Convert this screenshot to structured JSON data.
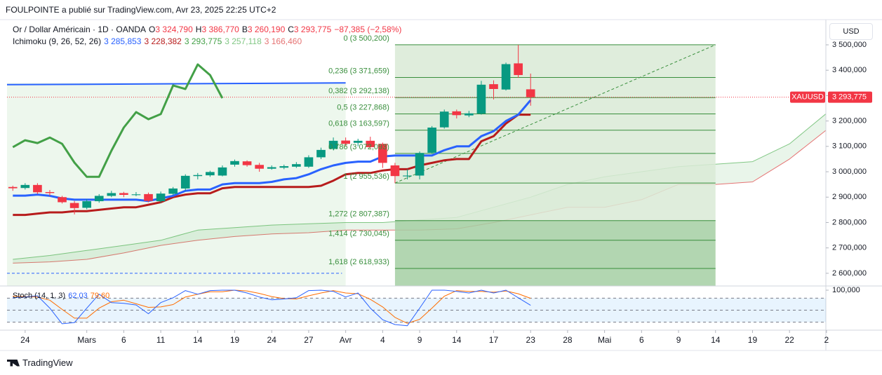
{
  "header": {
    "publisher": "FOULPOINTE a publié sur TradingView.com, Avr 23, 2025 22:25 UTC+2",
    "brand": "TradingView"
  },
  "chart_data": {
    "type": "candlestick",
    "legend": {
      "symbol": "Or / Dollar Américain · 1D · OANDA",
      "ohlc": [
        {
          "key": "O",
          "text": "3 324,790"
        },
        {
          "key": "H",
          "text": "3 386,770"
        },
        {
          "key": "B",
          "text": "3 260,190"
        },
        {
          "key": "C",
          "text": "3 293,775"
        }
      ],
      "change": "−87,385 (−2,58%)"
    },
    "currency": "USD",
    "x": [
      -1,
      0,
      1,
      2,
      3,
      4,
      5,
      6,
      7,
      8,
      9,
      10,
      11,
      12,
      13,
      14,
      15,
      16,
      17,
      18,
      19,
      20,
      21,
      22,
      23,
      24,
      25,
      26,
      27,
      28,
      29,
      30,
      31,
      32,
      33,
      34,
      35,
      36,
      37,
      38,
      39,
      40,
      41
    ],
    "open": [
      2940,
      2936,
      2948,
      2920,
      2900,
      2877,
      2858,
      2884,
      2905,
      2916,
      2908,
      2912,
      2884,
      2913,
      2934,
      2983,
      2986,
      2985,
      3028,
      3041,
      3027,
      3012,
      3016,
      3020,
      3020,
      3057,
      3090,
      3123,
      3114,
      3122,
      3110,
      3025,
      2982,
      2985,
      3075,
      3175,
      3238,
      3222,
      3229,
      3345,
      3324,
      3427,
      3324.79
    ],
    "high": [
      2945,
      2955,
      2955,
      2928,
      2905,
      2885,
      2892,
      2912,
      2925,
      2921,
      2920,
      2918,
      2922,
      2940,
      2990,
      2995,
      3004,
      3025,
      3048,
      3045,
      3035,
      3025,
      3028,
      3038,
      3065,
      3095,
      3135,
      3135,
      3130,
      3138,
      3115,
      3035,
      3010,
      3080,
      3180,
      3245,
      3245,
      3240,
      3358,
      3360,
      3430,
      3500,
      3386.77
    ],
    "low": [
      2925,
      2930,
      2912,
      2905,
      2875,
      2832,
      2852,
      2878,
      2900,
      2900,
      2904,
      2880,
      2878,
      2908,
      2925,
      2970,
      2980,
      2982,
      3020,
      3020,
      3000,
      3008,
      3010,
      3015,
      3015,
      3050,
      3085,
      3100,
      3100,
      3092,
      3015,
      2955,
      2970,
      2970,
      3070,
      3170,
      3210,
      3215,
      3225,
      3285,
      3320,
      3370,
      3260.19
    ],
    "close": [
      2935,
      2948,
      2919,
      2916,
      2880,
      2857,
      2884,
      2905,
      2916,
      2909,
      2911,
      2885,
      2914,
      2934,
      2984,
      2987,
      2999,
      3017,
      3042,
      3026,
      3012,
      3018,
      3022,
      3030,
      3057,
      3086,
      3122,
      3110,
      3122,
      3097,
      3035,
      2983,
      2985,
      3074,
      3174,
      3237,
      3223,
      3230,
      3343,
      3326,
      3424,
      3381,
      3293.775
    ],
    "colors": {
      "up": "#089981",
      "down": "#f23645"
    },
    "xlim": [
      -1.47,
      64.95
    ],
    "xticks": [
      {
        "value": 0,
        "label": "24"
      },
      {
        "value": 5,
        "label": "Mars"
      },
      {
        "value": 8,
        "label": "6"
      },
      {
        "value": 11,
        "label": "11"
      },
      {
        "value": 14,
        "label": "14"
      },
      {
        "value": 17,
        "label": "19"
      },
      {
        "value": 20,
        "label": "24"
      },
      {
        "value": 23,
        "label": "27"
      },
      {
        "value": 26,
        "label": "Avr"
      },
      {
        "value": 29,
        "label": "4"
      },
      {
        "value": 32,
        "label": "9"
      },
      {
        "value": 35,
        "label": "14"
      },
      {
        "value": 38,
        "label": "17"
      },
      {
        "value": 41,
        "label": "23"
      },
      {
        "value": 44,
        "label": "28"
      },
      {
        "value": 47,
        "label": "Mai"
      },
      {
        "value": 50,
        "label": "6"
      },
      {
        "value": 53,
        "label": "9"
      },
      {
        "value": 56,
        "label": "14"
      },
      {
        "value": 59,
        "label": "19"
      },
      {
        "value": 62,
        "label": "22"
      },
      {
        "value": 65,
        "label": "2"
      }
    ],
    "ylim": [
      2550,
      3580
    ],
    "yticks": [
      {
        "value": 3500,
        "label": "3 500,000"
      },
      {
        "value": 3400,
        "label": "3 400,000"
      },
      {
        "value": 3300,
        "label": "3 300,000"
      },
      {
        "value": 3200,
        "label": "3 200,000"
      },
      {
        "value": 3100,
        "label": "3 100,000"
      },
      {
        "value": 3000,
        "label": "3 000,000"
      },
      {
        "value": 2900,
        "label": "2 900,000"
      },
      {
        "value": 2800,
        "label": "2 800,000"
      },
      {
        "value": 2700,
        "label": "2 700,000"
      },
      {
        "value": 2600,
        "label": "2 600,000"
      }
    ],
    "last_price": {
      "value": 3293.775,
      "symbol": "XAUUSD",
      "label": "3 293,775",
      "color": "#f23645"
    },
    "ichimoku": {
      "title": "Ichimoku (9, 26, 52, 26)",
      "legend": [
        {
          "text": "3 285,853",
          "color": "#2962ff"
        },
        {
          "text": "3 228,382",
          "color": "#b71c1c"
        },
        {
          "text": "3 293,775",
          "color": "#43a047"
        },
        {
          "text": "3 257,118",
          "color": "#81c784"
        },
        {
          "text": "3 166,460",
          "color": "#e57373"
        }
      ],
      "tenkan": {
        "color": "#2962ff",
        "values": [
          2906,
          2906,
          2910,
          2905,
          2895,
          2890,
          2890,
          2890,
          2890,
          2890,
          2890,
          2885,
          2895,
          2905,
          2925,
          2930,
          2930,
          2950,
          2955,
          2955,
          2955,
          2960,
          2970,
          2975,
          2990,
          3010,
          3025,
          3035,
          3040,
          3040,
          3060,
          3064,
          3064,
          3064,
          3064,
          3085,
          3100,
          3100,
          3140,
          3160,
          3200,
          3225,
          3282
        ]
      },
      "kijun": {
        "color": "#b71c1c",
        "values": [
          2830,
          2830,
          2835,
          2840,
          2840,
          2845,
          2845,
          2850,
          2855,
          2860,
          2860,
          2870,
          2880,
          2900,
          2910,
          2915,
          2915,
          2935,
          2940,
          2940,
          2940,
          2940,
          2940,
          2940,
          2940,
          2945,
          2965,
          2990,
          2995,
          2995,
          3005,
          3010,
          3010,
          3025,
          3035,
          3045,
          3050,
          3050,
          3120,
          3140,
          3190,
          3225,
          3225
        ]
      },
      "lagging": {
        "color": "#43a047",
        "x": [
          -1,
          0,
          1,
          2,
          3,
          4,
          5,
          6,
          7,
          8,
          9,
          10,
          11,
          12,
          13,
          14,
          15,
          16
        ],
        "values": [
          3097,
          3124,
          3113,
          3135,
          3110,
          3036,
          2980,
          2980,
          3083,
          3174,
          3235,
          3207,
          3227,
          3340,
          3326,
          3423,
          3381,
          3290
        ]
      },
      "cloud": {
        "x": [
          -1,
          2,
          5,
          8,
          11,
          14,
          17,
          20,
          23,
          26,
          29,
          32,
          35,
          38,
          41,
          44,
          47,
          50,
          53,
          56,
          59,
          62,
          65
        ],
        "span_a": [
          2655,
          2670,
          2690,
          2710,
          2730,
          2770,
          2780,
          2790,
          2795,
          2800,
          2800,
          2810,
          2820,
          2860,
          2900,
          2950,
          2980,
          3000,
          3020,
          3030,
          3040,
          3110,
          3230
        ],
        "span_b": [
          2640,
          2645,
          2655,
          2680,
          2710,
          2730,
          2745,
          2755,
          2760,
          2770,
          2770,
          2770,
          2775,
          2800,
          2830,
          2860,
          2860,
          2890,
          2950,
          2950,
          2960,
          3050,
          3165
        ],
        "color_a": "#81c784",
        "color_b": "#e57373"
      }
    },
    "fibonacci": {
      "x": [
        30,
        56
      ],
      "line_color": "#388e3c",
      "levels": [
        {
          "value": 3500.2,
          "label": "0 (3 500,200)",
          "fill": "#d9ead6"
        },
        {
          "value": 3371.659,
          "label": "0,236 (3 371,659)",
          "fill": "#d9ead6"
        },
        {
          "value": 3292.138,
          "label": "0,382 (3 292,138)",
          "fill": "#d9ead6"
        },
        {
          "value": 3227.868,
          "label": "0,5 (3 227,868)",
          "fill": "#d9ead6"
        },
        {
          "value": 3163.597,
          "label": "0,618 (3 163,597)",
          "fill": "#d9ead6"
        },
        {
          "value": 3072.093,
          "label": "0,786 (3 072,093)",
          "fill": "#d9ead6"
        },
        {
          "value": 2955.536,
          "label": "1 (2 955,536)",
          "fill": "#d9ead6"
        },
        {
          "value": 2807.387,
          "label": "1,272 (2 807,387)",
          "fill": "#a5cfa3"
        },
        {
          "value": 2730.045,
          "label": "1,414 (2 730,045)",
          "fill": "#a5cfa3"
        },
        {
          "value": 2618.933,
          "label": "1,618 (2 618,933)",
          "fill": "#a5cfa3"
        }
      ]
    },
    "drawings": {
      "trend_line": {
        "x": [
          -1.47,
          26
        ],
        "values": [
          3343,
          3350
        ],
        "color": "#2962ff"
      },
      "dashed_line": {
        "x": [
          -1.47,
          25.7
        ],
        "values": [
          2600,
          2600
        ],
        "color": "#2962ff"
      }
    },
    "stoch": {
      "title": "Stoch (14, 1, 3)",
      "ylim": [
        0,
        100
      ],
      "yticks": [
        {
          "value": 100,
          "label": "100,000"
        }
      ],
      "bands": [
        80,
        50,
        20
      ],
      "k": {
        "color": "#2962ff",
        "label": "62,03",
        "values": [
          81,
          83,
          86,
          55,
          16,
          19,
          55,
          90,
          69,
          67,
          63,
          41,
          69,
          81,
          99,
          90,
          99,
          100,
          100,
          93,
          83,
          76,
          78,
          81,
          99,
          100,
          97,
          83,
          93,
          55,
          26,
          14,
          11,
          55,
          100,
          100,
          97,
          93,
          100,
          93,
          100,
          81,
          62.03
        ]
      },
      "d": {
        "color": "#ff6d00",
        "label": "79,60",
        "values": [
          85,
          84,
          83,
          75,
          52,
          30,
          30,
          55,
          71,
          75,
          66,
          57,
          58,
          64,
          83,
          90,
          96,
          96,
          100,
          98,
          92,
          84,
          79,
          78,
          86,
          93,
          99,
          93,
          91,
          77,
          58,
          32,
          17,
          27,
          55,
          85,
          99,
          97,
          97,
          95,
          98,
          91,
          79.6
        ]
      }
    }
  }
}
